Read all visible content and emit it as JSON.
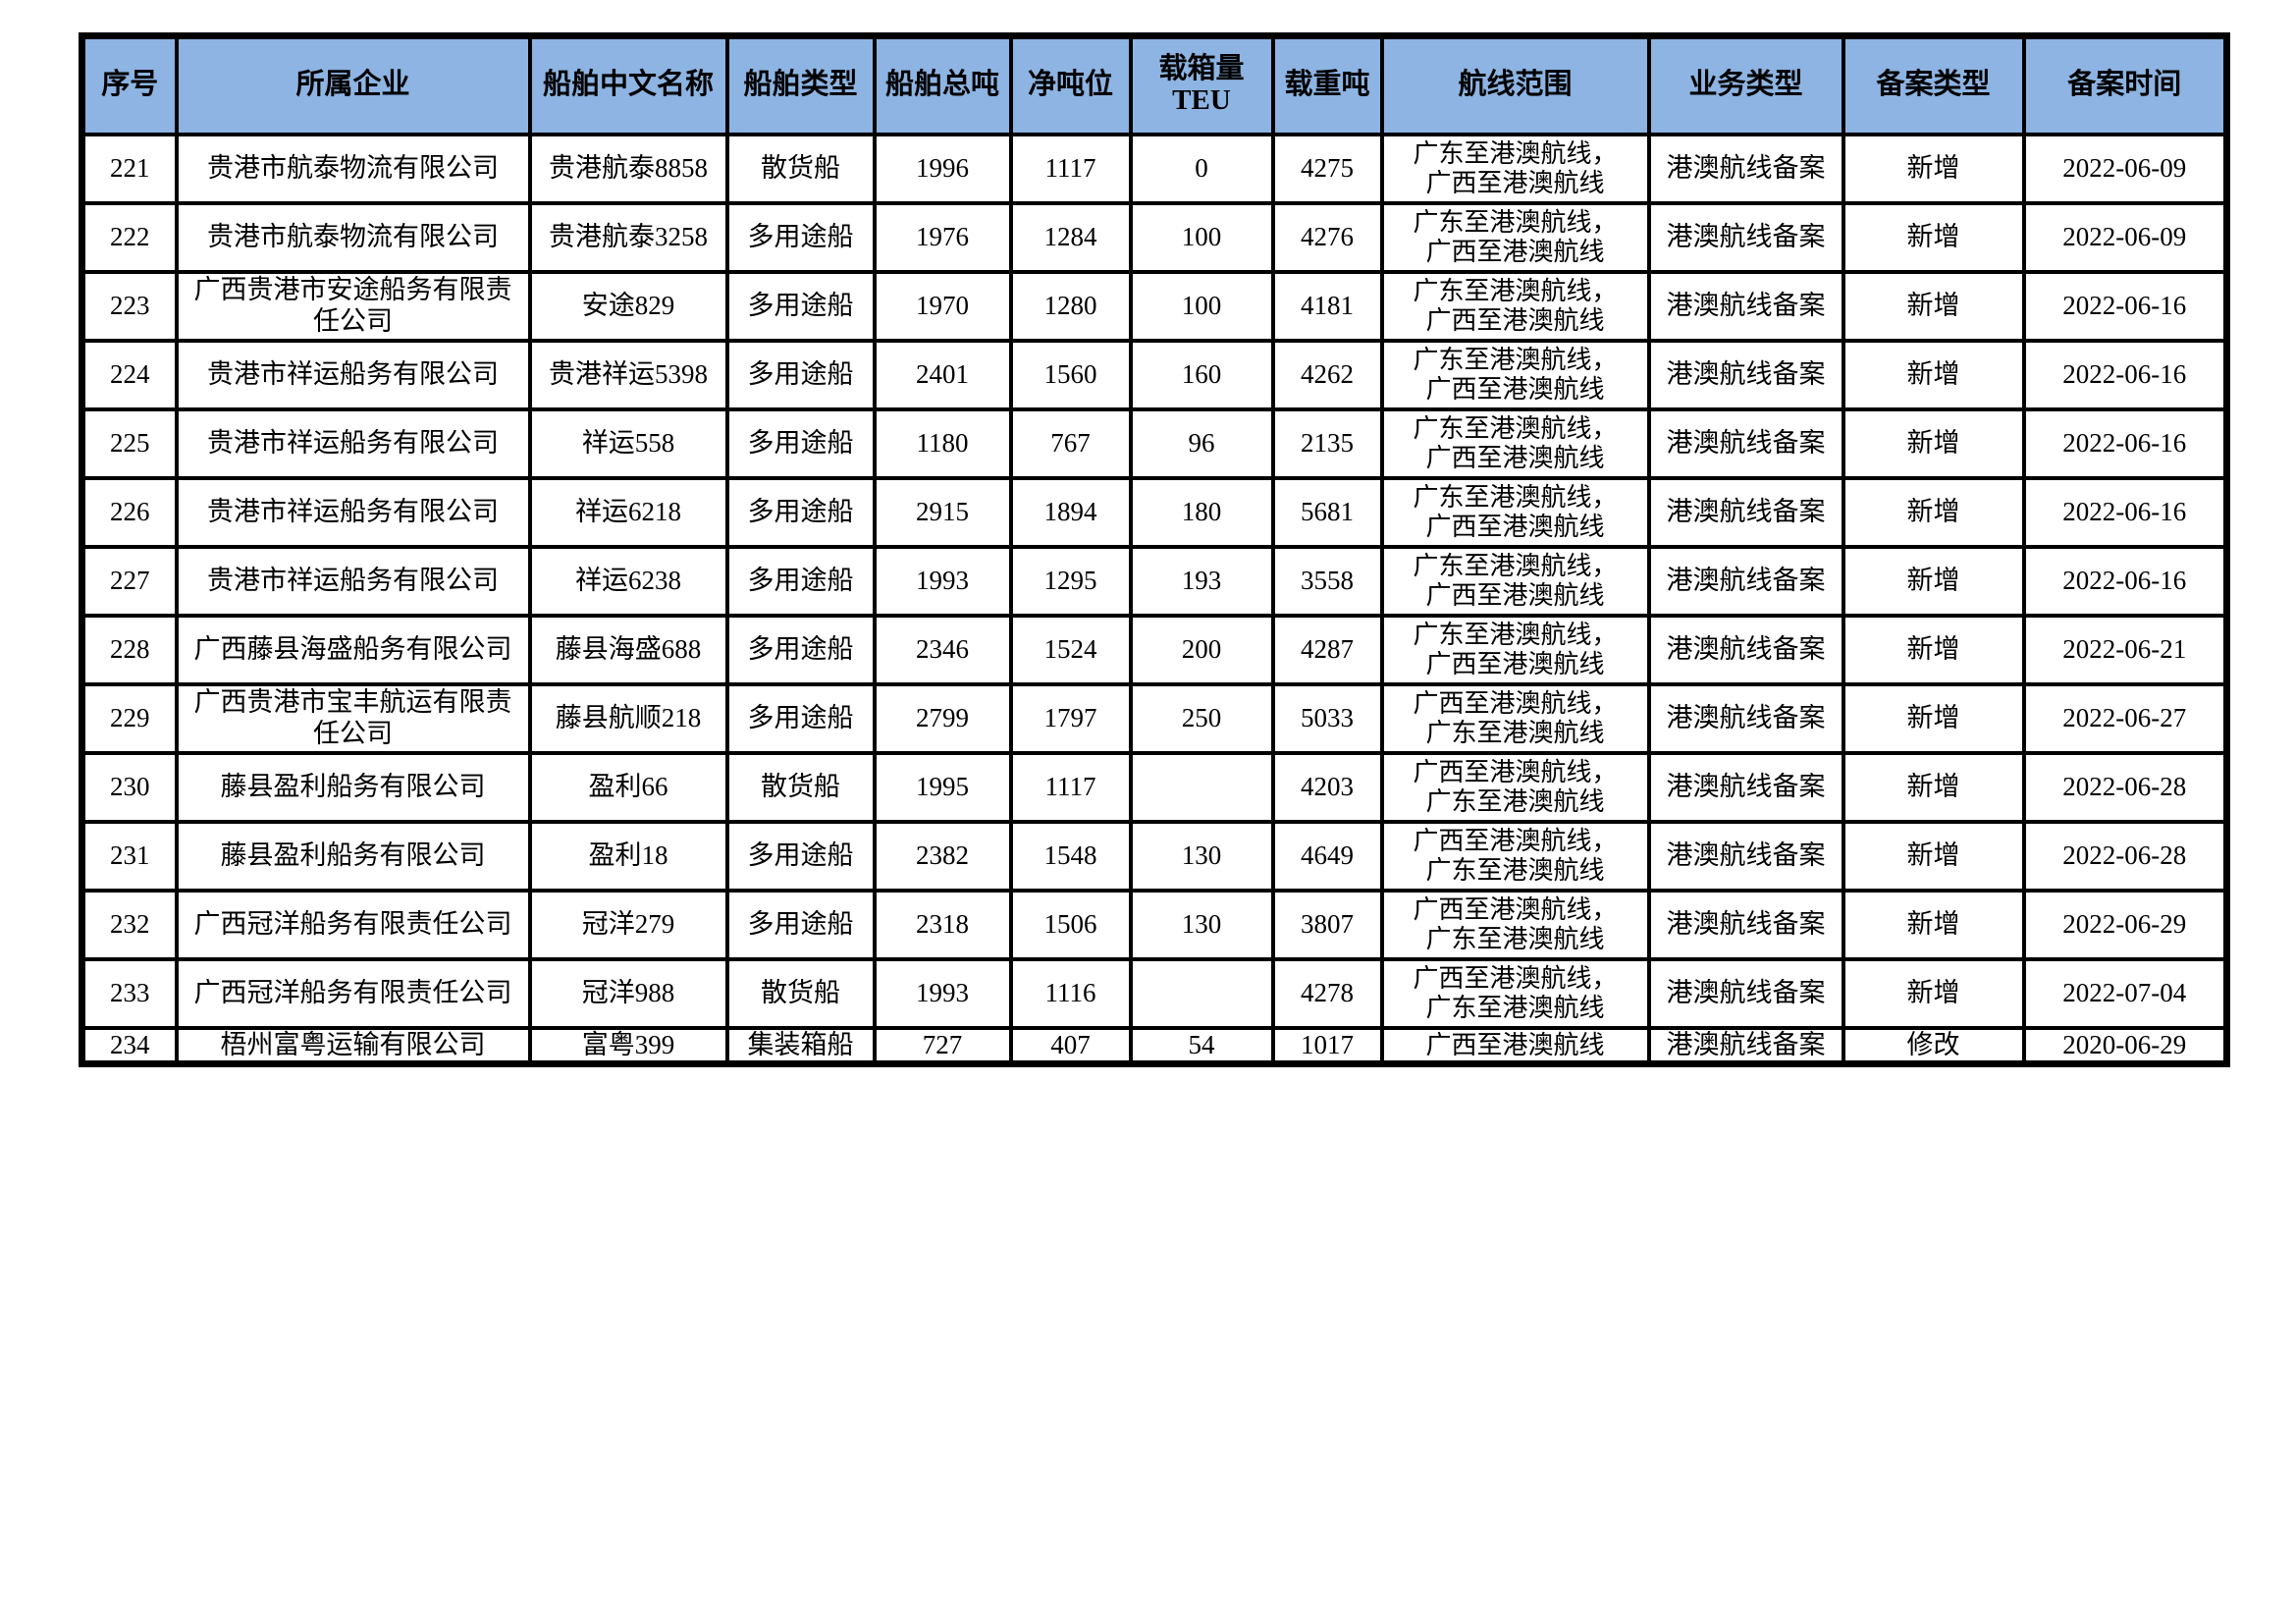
{
  "colors": {
    "header_bg": "#8DB4E2",
    "border": "#000000",
    "page_bg": "#FFFFFF"
  },
  "table": {
    "columns": [
      {
        "key": "seq",
        "label": "序号"
      },
      {
        "key": "company",
        "label": "所属企业"
      },
      {
        "key": "ship_name",
        "label": "船舶中文名称"
      },
      {
        "key": "ship_type",
        "label": "船舶类型"
      },
      {
        "key": "gross_tonnage",
        "label": "船舶总吨"
      },
      {
        "key": "net_tonnage",
        "label": "净吨位"
      },
      {
        "key": "teu",
        "label": "载箱量TEU"
      },
      {
        "key": "deadweight",
        "label": "载重吨"
      },
      {
        "key": "route",
        "label": "航线范围"
      },
      {
        "key": "business_type",
        "label": "业务类型"
      },
      {
        "key": "filing_type",
        "label": "备案类型"
      },
      {
        "key": "filing_date",
        "label": "备案时间"
      }
    ],
    "rows": [
      {
        "seq": "221",
        "company": "贵港市航泰物流有限公司",
        "ship_name": "贵港航泰8858",
        "ship_type": "散货船",
        "gross_tonnage": "1996",
        "net_tonnage": "1117",
        "teu": "0",
        "deadweight": "4275",
        "route": [
          "广东至港澳航线，",
          "广西至港澳航线"
        ],
        "business_type": "港澳航线备案",
        "filing_type": "新增",
        "filing_date": "2022-06-09"
      },
      {
        "seq": "222",
        "company": "贵港市航泰物流有限公司",
        "ship_name": "贵港航泰3258",
        "ship_type": "多用途船",
        "gross_tonnage": "1976",
        "net_tonnage": "1284",
        "teu": "100",
        "deadweight": "4276",
        "route": [
          "广东至港澳航线，",
          "广西至港澳航线"
        ],
        "business_type": "港澳航线备案",
        "filing_type": "新增",
        "filing_date": "2022-06-09"
      },
      {
        "seq": "223",
        "company": "广西贵港市安途船务有限责任公司",
        "ship_name": "安途829",
        "ship_type": "多用途船",
        "gross_tonnage": "1970",
        "net_tonnage": "1280",
        "teu": "100",
        "deadweight": "4181",
        "route": [
          "广东至港澳航线，",
          "广西至港澳航线"
        ],
        "business_type": "港澳航线备案",
        "filing_type": "新增",
        "filing_date": "2022-06-16"
      },
      {
        "seq": "224",
        "company": "贵港市祥运船务有限公司",
        "ship_name": "贵港祥运5398",
        "ship_type": "多用途船",
        "gross_tonnage": "2401",
        "net_tonnage": "1560",
        "teu": "160",
        "deadweight": "4262",
        "route": [
          "广东至港澳航线，",
          "广西至港澳航线"
        ],
        "business_type": "港澳航线备案",
        "filing_type": "新增",
        "filing_date": "2022-06-16"
      },
      {
        "seq": "225",
        "company": "贵港市祥运船务有限公司",
        "ship_name": "祥运558",
        "ship_type": "多用途船",
        "gross_tonnage": "1180",
        "net_tonnage": "767",
        "teu": "96",
        "deadweight": "2135",
        "route": [
          "广东至港澳航线，",
          "广西至港澳航线"
        ],
        "business_type": "港澳航线备案",
        "filing_type": "新增",
        "filing_date": "2022-06-16"
      },
      {
        "seq": "226",
        "company": "贵港市祥运船务有限公司",
        "ship_name": "祥运6218",
        "ship_type": "多用途船",
        "gross_tonnage": "2915",
        "net_tonnage": "1894",
        "teu": "180",
        "deadweight": "5681",
        "route": [
          "广东至港澳航线，",
          "广西至港澳航线"
        ],
        "business_type": "港澳航线备案",
        "filing_type": "新增",
        "filing_date": "2022-06-16"
      },
      {
        "seq": "227",
        "company": "贵港市祥运船务有限公司",
        "ship_name": "祥运6238",
        "ship_type": "多用途船",
        "gross_tonnage": "1993",
        "net_tonnage": "1295",
        "teu": "193",
        "deadweight": "3558",
        "route": [
          "广东至港澳航线，",
          "广西至港澳航线"
        ],
        "business_type": "港澳航线备案",
        "filing_type": "新增",
        "filing_date": "2022-06-16"
      },
      {
        "seq": "228",
        "company": "广西藤县海盛船务有限公司",
        "ship_name": "藤县海盛688",
        "ship_type": "多用途船",
        "gross_tonnage": "2346",
        "net_tonnage": "1524",
        "teu": "200",
        "deadweight": "4287",
        "route": [
          "广东至港澳航线，",
          "广西至港澳航线"
        ],
        "business_type": "港澳航线备案",
        "filing_type": "新增",
        "filing_date": "2022-06-21"
      },
      {
        "seq": "229",
        "company": "广西贵港市宝丰航运有限责任公司",
        "ship_name": "藤县航顺218",
        "ship_type": "多用途船",
        "gross_tonnage": "2799",
        "net_tonnage": "1797",
        "teu": "250",
        "deadweight": "5033",
        "route": [
          "广西至港澳航线，",
          "广东至港澳航线"
        ],
        "business_type": "港澳航线备案",
        "filing_type": "新增",
        "filing_date": "2022-06-27"
      },
      {
        "seq": "230",
        "company": "藤县盈利船务有限公司",
        "ship_name": "盈利66",
        "ship_type": "散货船",
        "gross_tonnage": "1995",
        "net_tonnage": "1117",
        "teu": "",
        "deadweight": "4203",
        "route": [
          "广西至港澳航线，",
          "广东至港澳航线"
        ],
        "business_type": "港澳航线备案",
        "filing_type": "新增",
        "filing_date": "2022-06-28"
      },
      {
        "seq": "231",
        "company": "藤县盈利船务有限公司",
        "ship_name": "盈利18",
        "ship_type": "多用途船",
        "gross_tonnage": "2382",
        "net_tonnage": "1548",
        "teu": "130",
        "deadweight": "4649",
        "route": [
          "广西至港澳航线，",
          "广东至港澳航线"
        ],
        "business_type": "港澳航线备案",
        "filing_type": "新增",
        "filing_date": "2022-06-28"
      },
      {
        "seq": "232",
        "company": "广西冠洋船务有限责任公司",
        "ship_name": "冠洋279",
        "ship_type": "多用途船",
        "gross_tonnage": "2318",
        "net_tonnage": "1506",
        "teu": "130",
        "deadweight": "3807",
        "route": [
          "广西至港澳航线，",
          "广东至港澳航线"
        ],
        "business_type": "港澳航线备案",
        "filing_type": "新增",
        "filing_date": "2022-06-29"
      },
      {
        "seq": "233",
        "company": "广西冠洋船务有限责任公司",
        "ship_name": "冠洋988",
        "ship_type": "散货船",
        "gross_tonnage": "1993",
        "net_tonnage": "1116",
        "teu": "",
        "deadweight": "4278",
        "route": [
          "广西至港澳航线，",
          "广东至港澳航线"
        ],
        "business_type": "港澳航线备案",
        "filing_type": "新增",
        "filing_date": "2022-07-04"
      },
      {
        "seq": "234",
        "company": "梧州富粤运输有限公司",
        "ship_name": "富粤399",
        "ship_type": "集装箱船",
        "gross_tonnage": "727",
        "net_tonnage": "407",
        "teu": "54",
        "deadweight": "1017",
        "route": [
          "广西至港澳航线"
        ],
        "business_type": "港澳航线备案",
        "filing_type": "修改",
        "filing_date": "2020-06-29"
      }
    ]
  }
}
